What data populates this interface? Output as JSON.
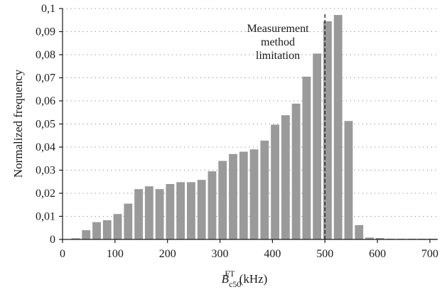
{
  "colors": {
    "bar": "#9a9a9a",
    "axis": "#1a1a1a"
  },
  "chart_data": {
    "type": "bar",
    "title": "",
    "xlabel": {
      "base": "B",
      "subscript": "c50",
      "superscript": "FT",
      "unit": " (kHz)"
    },
    "ylabel": "Normalized frequency",
    "xlim": [
      0,
      715
    ],
    "ylim": [
      0,
      0.1
    ],
    "x_ticks": [
      0,
      100,
      200,
      300,
      400,
      500,
      600,
      700
    ],
    "x_tick_labels": [
      "0",
      "100",
      "200",
      "300",
      "400",
      "500",
      "600",
      "700"
    ],
    "y_ticks": [
      0,
      0.01,
      0.02,
      0.03,
      0.04,
      0.05,
      0.06,
      0.07,
      0.08,
      0.09,
      0.1
    ],
    "y_tick_labels": [
      "0",
      "0,01",
      "0,02",
      "0,03",
      "0,04",
      "0,05",
      "0,06",
      "0,07",
      "0,08",
      "0,09",
      "0,1"
    ],
    "grid": true,
    "bar_width": 16,
    "x": [
      25,
      45,
      65,
      85,
      105,
      125,
      145,
      165,
      185,
      205,
      225,
      245,
      265,
      285,
      305,
      325,
      345,
      365,
      385,
      405,
      425,
      445,
      465,
      485,
      505,
      525,
      545,
      565,
      585,
      605,
      625,
      645,
      665,
      685,
      705
    ],
    "values": [
      0.0005,
      0.004,
      0.0075,
      0.0083,
      0.011,
      0.0155,
      0.0218,
      0.023,
      0.0218,
      0.024,
      0.0248,
      0.0248,
      0.0258,
      0.0295,
      0.034,
      0.037,
      0.038,
      0.039,
      0.0428,
      0.0497,
      0.0538,
      0.0588,
      0.0705,
      0.0805,
      0.0945,
      0.0972,
      0.0513,
      0.0062,
      0.0008,
      0.0006,
      0.0003,
      0.0003,
      0.0003,
      0.0003,
      0.0003
    ],
    "reference_line": {
      "x": 500
    },
    "annotation": [
      "Measurement",
      "method",
      "limitation"
    ]
  }
}
